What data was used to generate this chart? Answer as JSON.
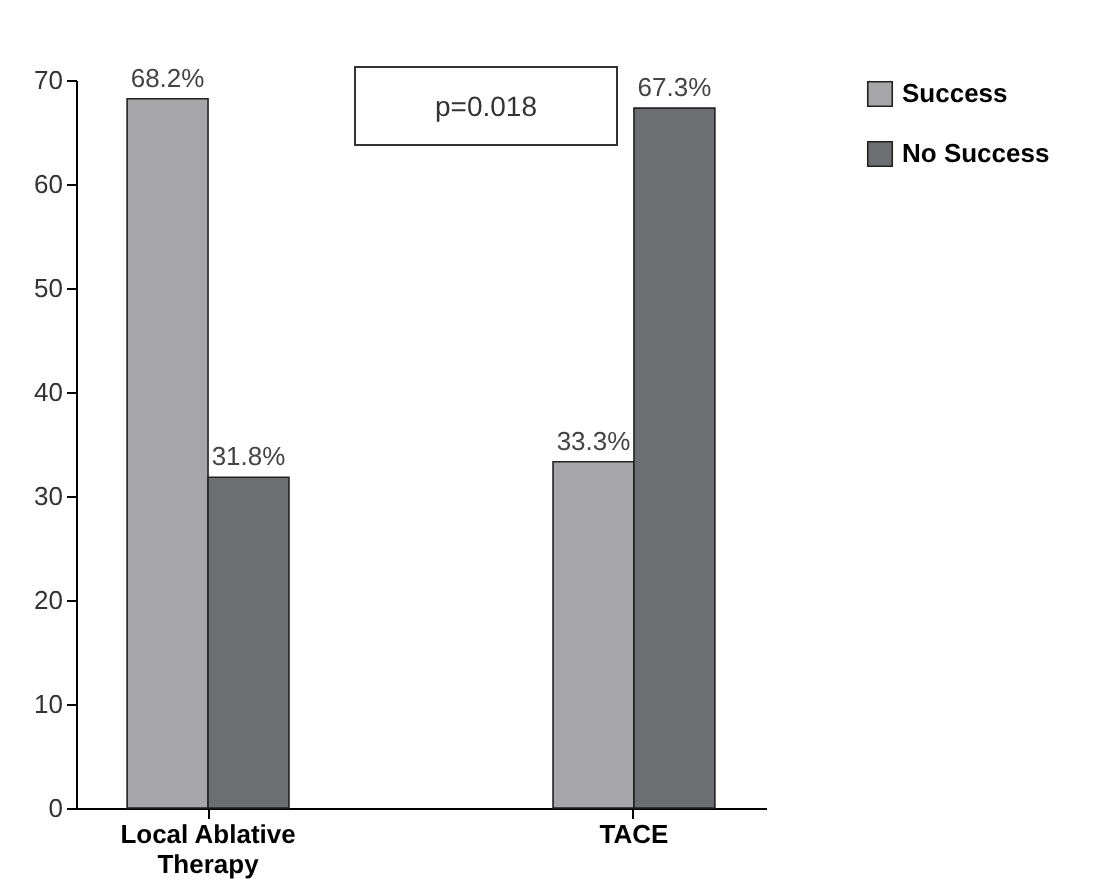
{
  "chart_data": {
    "type": "bar",
    "categories": [
      "Local Ablative Therapy",
      "TACE"
    ],
    "series": [
      {
        "name": "Success",
        "color": "#a6a6a8",
        "values": [
          68.2,
          33.3
        ],
        "value_labels": [
          "68.2%",
          "33.3%"
        ]
      },
      {
        "name": "No Success",
        "color": "#6d6e72",
        "values": [
          31.8,
          67.3
        ],
        "value_labels": [
          "31.8%",
          "67.3%"
        ]
      }
    ],
    "ylim": [
      0,
      70
    ],
    "yticks": [
      0,
      10,
      20,
      30,
      40,
      50,
      60,
      70
    ],
    "grid": false,
    "legend": "right",
    "annotations": [
      "p=0.018"
    ]
  }
}
